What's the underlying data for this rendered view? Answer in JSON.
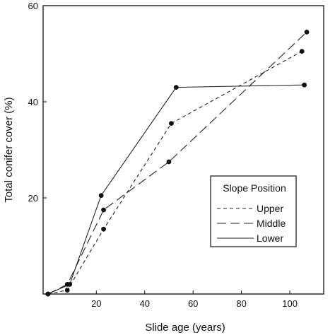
{
  "chart_data": {
    "type": "line",
    "title": "",
    "xlabel": "Slide age (years)",
    "ylabel": "Total conifer cover (%)",
    "xlim": [
      -2,
      114
    ],
    "ylim": [
      0,
      60
    ],
    "x_ticks": [
      20,
      40,
      60,
      80,
      100
    ],
    "y_ticks": [
      20,
      40,
      60
    ],
    "x_tick_labels": [
      "20",
      "40",
      "60",
      "80",
      "100"
    ],
    "y_tick_labels": [
      "20",
      "40",
      "60"
    ],
    "grid": false,
    "legend": {
      "title": "Slope Position",
      "placement": "center-right"
    },
    "series": [
      {
        "name": "Upper",
        "dash": "dashed",
        "points": [
          [
            0,
            0
          ],
          [
            8,
            0.8
          ],
          [
            23,
            13.5
          ],
          [
            51,
            35.5
          ],
          [
            105,
            50.5
          ]
        ]
      },
      {
        "name": "Middle",
        "dash": "long-dashed",
        "points": [
          [
            0,
            0
          ],
          [
            8,
            2
          ],
          [
            23,
            17.5
          ],
          [
            50,
            27.5
          ],
          [
            107,
            54.5
          ]
        ]
      },
      {
        "name": "Lower",
        "dash": "solid",
        "points": [
          [
            0,
            0
          ],
          [
            9,
            2
          ],
          [
            22,
            20.5
          ],
          [
            53,
            43
          ],
          [
            106,
            43.5
          ]
        ]
      }
    ]
  }
}
